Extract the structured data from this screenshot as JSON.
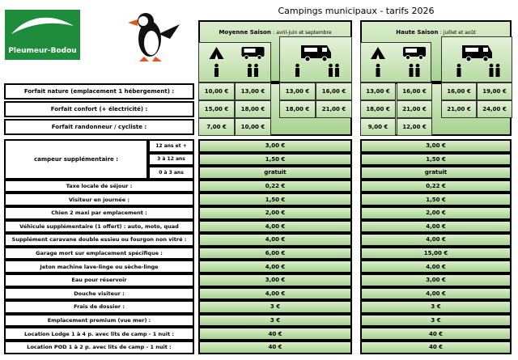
{
  "logo": {
    "name": "Pleumeur-Bodou"
  },
  "title": "Campings municipaux - tarifs 2026",
  "seasons": [
    {
      "name": "Moyenne Saison",
      "period": ": avril-juin et septembre"
    },
    {
      "name": "Haute Saison",
      "period": ": juillet et août"
    }
  ],
  "forfaits": [
    {
      "label": "Forfait nature (emplacement 1 hébergement) :",
      "moyenne": [
        "10,00 €",
        "13,00 €",
        "13,00 €",
        "16,00 €"
      ],
      "haute": [
        "13,00 €",
        "16,00 €",
        "16,00 €",
        "19,00 €"
      ]
    },
    {
      "label": "Forfait confort (+ électricité) :",
      "moyenne": [
        "15,00 €",
        "18,00 €",
        "18,00 €",
        "21,00 €"
      ],
      "haute": [
        "18,00 €",
        "21,00 €",
        "21,00 €",
        "24,00 €"
      ]
    },
    {
      "label": "Forfait randonneur / cycliste :",
      "moyenne": [
        "7,00 €",
        "10,00 €"
      ],
      "haute": [
        "9,00 €",
        "12,00 €"
      ]
    }
  ],
  "campeur": {
    "label": "campeur supplémentaire :",
    "rows": [
      {
        "age": "12 ans et +",
        "moyenne": "3,00 €",
        "haute": "3,00 €"
      },
      {
        "age": "3 à 12 ans",
        "moyenne": "1,50 €",
        "haute": "1,50 €"
      },
      {
        "age": "0 à 3 ans",
        "moyenne": "gratuit",
        "haute": "gratuit"
      }
    ]
  },
  "supplements": [
    {
      "label": "Taxe locale de séjour :",
      "moyenne": "0,22 €",
      "haute": "0,22 €"
    },
    {
      "label": "Visiteur en journée :",
      "moyenne": "1,50 €",
      "haute": "1,50 €"
    },
    {
      "label": "Chien 2 maxi par emplacement :",
      "moyenne": "2,00 €",
      "haute": "2,00 €"
    },
    {
      "label": "Véhicule supplémentaire (1 offert) : auto, moto, quad",
      "moyenne": "4,00 €",
      "haute": "4,00 €"
    },
    {
      "label": "Supplément caravane double essieu ou fourgon non vitré :",
      "moyenne": "4,00 €",
      "haute": "4,00 €"
    },
    {
      "label": "Garage mort sur emplacement spécifique :",
      "moyenne": "6,00 €",
      "haute": "15,00 €"
    },
    {
      "label": "Jeton machine lave-linge ou sèche-linge",
      "moyenne": "4,00 €",
      "haute": "4,00 €"
    },
    {
      "label": "Eau pour réservoir",
      "moyenne": "3,00 €",
      "haute": "3,00 €"
    },
    {
      "label": "Douche visiteur :",
      "moyenne": "4,00 €",
      "haute": "4,00 €"
    },
    {
      "label": "Frais de dossier :",
      "moyenne": "3 €",
      "haute": "3 €"
    },
    {
      "label": "Emplacement premium (vue mer) :",
      "moyenne": "3 €",
      "haute": "3 €"
    },
    {
      "label": "Location Lodge 1 à 4 p. avec lits de camp - 1 nuit :",
      "moyenne": "40 €",
      "haute": "40 €"
    },
    {
      "label": "Location POD 1 à 2 p. avec lits de camp - 1 nuit :",
      "moyenne": "40 €",
      "haute": "40 €"
    }
  ]
}
